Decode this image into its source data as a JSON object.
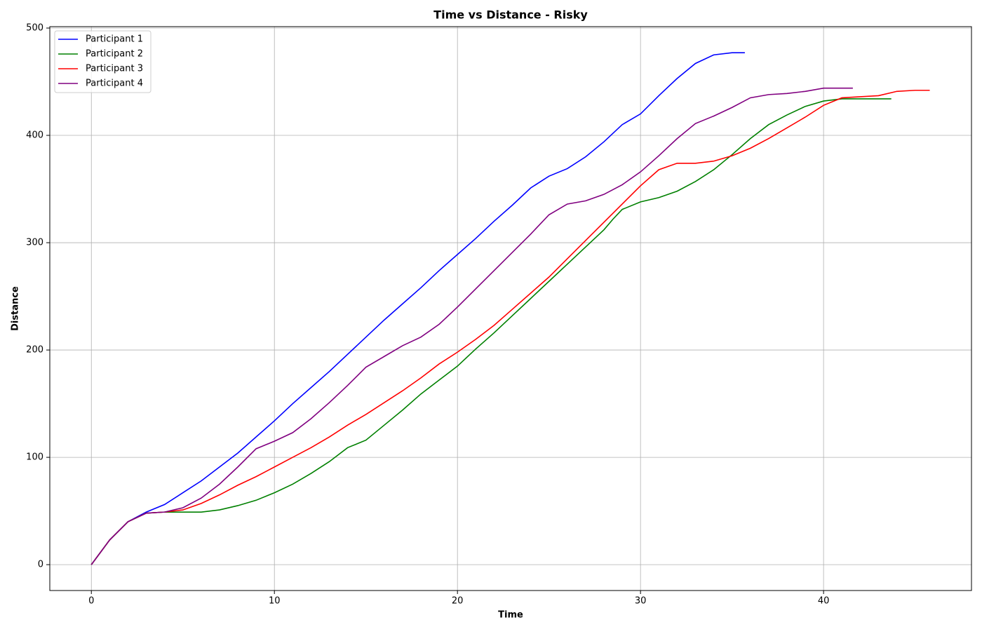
{
  "chart_data": {
    "type": "line",
    "title": "Time vs Distance - Risky",
    "xlabel": "Time",
    "ylabel": "Distance",
    "xlim": [
      -2.27,
      48.08
    ],
    "ylim": [
      -24.1,
      501.3
    ],
    "xticks": [
      0,
      10,
      20,
      30,
      40
    ],
    "yticks": [
      0,
      100,
      200,
      300,
      400,
      500
    ],
    "grid": true,
    "legend": "upper left",
    "series": [
      {
        "name": "Participant 1",
        "color": "#0000ff",
        "x": [
          0,
          1,
          2,
          3,
          4,
          5,
          6,
          7,
          8,
          9,
          10,
          11,
          12,
          13,
          14,
          15,
          16,
          17,
          18,
          19,
          20,
          21,
          22,
          23,
          24,
          25,
          26,
          27,
          28,
          29,
          30,
          31,
          32,
          33,
          34,
          35,
          35.7
        ],
        "values": [
          0,
          23,
          40,
          49,
          56,
          67,
          78,
          91,
          104,
          119,
          134,
          150,
          165,
          180,
          196,
          212,
          228,
          243,
          258,
          274,
          289,
          304,
          320,
          335,
          351,
          362,
          369,
          380,
          394,
          410,
          420,
          437,
          453,
          467,
          475,
          477,
          477
        ]
      },
      {
        "name": "Participant 2",
        "color": "#008000",
        "x": [
          0,
          1,
          2,
          3,
          4,
          5,
          6,
          7,
          8,
          9,
          10,
          11,
          12,
          13,
          14,
          15,
          16,
          17,
          18,
          19,
          20,
          21,
          22,
          23,
          24,
          25,
          26,
          27,
          28,
          28.5,
          29,
          30,
          31,
          32,
          33,
          34,
          35,
          36,
          37,
          38,
          39,
          40,
          41,
          42,
          43,
          43.7
        ],
        "values": [
          0,
          23,
          40,
          48,
          49,
          49,
          49,
          51,
          55,
          60,
          67,
          75,
          85,
          96,
          109,
          116,
          130,
          144,
          159,
          172,
          185,
          201,
          216,
          232,
          248,
          264,
          280,
          296,
          312,
          322,
          331,
          338,
          342,
          348,
          357,
          368,
          382,
          397,
          410,
          419,
          427,
          432,
          434,
          434,
          434,
          434
        ]
      },
      {
        "name": "Participant 3",
        "color": "#ff0000",
        "x": [
          0,
          1,
          2,
          3,
          4,
          5,
          6,
          7,
          8,
          9,
          10,
          11,
          12,
          13,
          14,
          15,
          16,
          17,
          18,
          19,
          20,
          21,
          22,
          23,
          24,
          25,
          26,
          27,
          28,
          29,
          30,
          31,
          32,
          33,
          34,
          35,
          36,
          37,
          38,
          39,
          40,
          41,
          42,
          43,
          44,
          45,
          45.8
        ],
        "values": [
          0,
          23,
          40,
          48,
          49,
          51,
          57,
          65,
          74,
          82,
          91,
          100,
          109,
          119,
          130,
          140,
          151,
          162,
          174,
          187,
          198,
          210,
          223,
          238,
          253,
          268,
          285,
          302,
          319,
          336,
          353,
          368,
          374,
          374,
          376,
          381,
          388,
          397,
          407,
          417,
          428,
          435,
          436,
          437,
          441,
          442,
          442
        ]
      },
      {
        "name": "Participant 4",
        "color": "#800080",
        "x": [
          0,
          1,
          2,
          3,
          4,
          5,
          6,
          7,
          8,
          9,
          10,
          11,
          12,
          13,
          14,
          15,
          16,
          17,
          18,
          19,
          20,
          21,
          22,
          23,
          24,
          25,
          26,
          27,
          28,
          29,
          30,
          31,
          32,
          33,
          34,
          35,
          36,
          37,
          38,
          39,
          40,
          41,
          41.6
        ],
        "values": [
          0,
          23,
          40,
          48,
          49,
          53,
          62,
          75,
          91,
          108,
          115,
          123,
          136,
          151,
          167,
          184,
          194,
          204,
          212,
          224,
          240,
          257,
          274,
          291,
          308,
          326,
          336,
          339,
          345,
          354,
          366,
          381,
          397,
          411,
          418,
          426,
          435,
          438,
          439,
          441,
          444,
          444,
          444
        ]
      }
    ]
  }
}
